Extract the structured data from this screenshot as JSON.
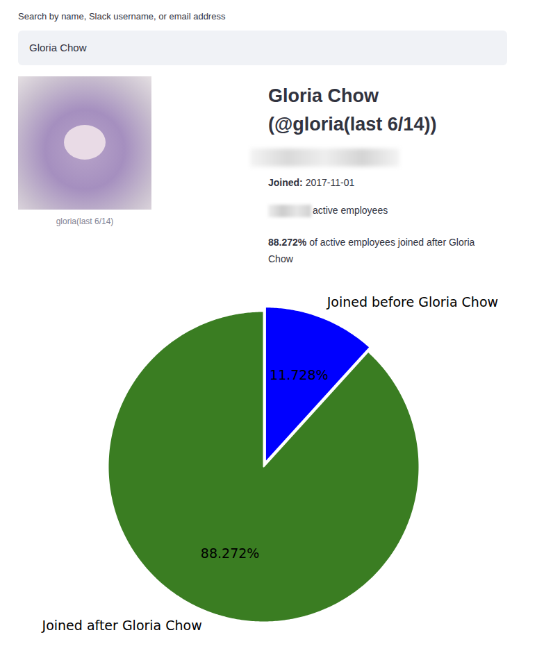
{
  "search": {
    "label": "Search by name, Slack username, or email address",
    "value": "Gloria Chow"
  },
  "profile": {
    "caption": "gloria(last 6/14)",
    "heading": "Gloria Chow (@gloria(last 6/14))",
    "joined_label": "Joined:",
    "joined": "2017-11-01",
    "employees_text": "active employees",
    "share": "88.272%",
    "share_text": "of active employees joined after Gloria Chow"
  },
  "chart_data": {
    "type": "pie",
    "categories": [
      "Joined before Gloria Chow",
      "Joined after Gloria Chow"
    ],
    "values": [
      11.728,
      88.272
    ],
    "colors": [
      "#0000ff",
      "#3a7d22"
    ],
    "data_labels": true,
    "value_labels": [
      "11.728%",
      "88.272%"
    ]
  }
}
